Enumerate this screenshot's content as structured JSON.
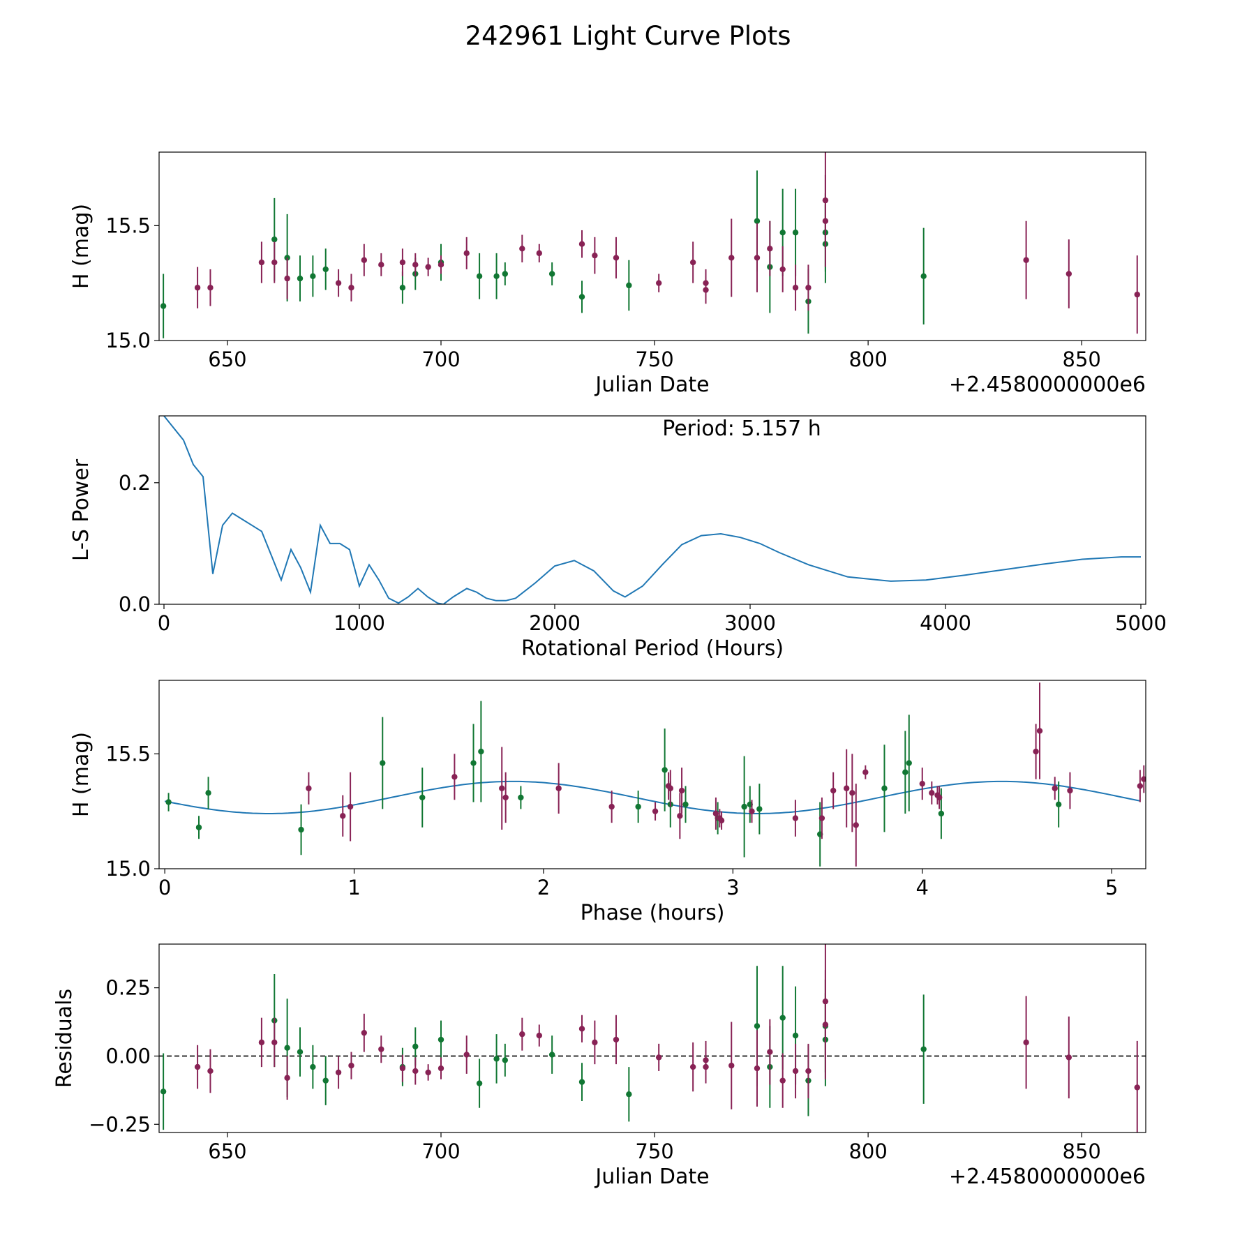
{
  "title": "242961 Light Curve Plots",
  "colors": {
    "green": "#117733",
    "purple": "#882255",
    "curve": "#1f77b4"
  },
  "chart_data": [
    {
      "id": "lightcurve",
      "type": "scatter",
      "xlabel": "Julian Date",
      "ylabel": "H (mag)",
      "x_offset_label": "+2.4580000000e6",
      "xlim": [
        634,
        865
      ],
      "ylim": [
        15.0,
        15.82
      ],
      "xticks": [
        650,
        700,
        750,
        800,
        850
      ],
      "yticks": [
        15.0,
        15.5
      ],
      "ytick_labels": [
        "15.0",
        "15.5"
      ],
      "series": [
        {
          "name": "green",
          "color": "#117733",
          "x": [
            635,
            661,
            664,
            667,
            670,
            673,
            691,
            694,
            700,
            709,
            713,
            715,
            726,
            733,
            744,
            774,
            777,
            780,
            783,
            786,
            790,
            790,
            813
          ],
          "y": [
            15.15,
            15.44,
            15.36,
            15.27,
            15.28,
            15.31,
            15.23,
            15.29,
            15.34,
            15.28,
            15.28,
            15.29,
            15.29,
            15.19,
            15.24,
            15.52,
            15.32,
            15.47,
            15.47,
            15.17,
            15.42,
            15.47,
            15.28
          ],
          "err": [
            0.14,
            0.18,
            0.19,
            0.1,
            0.09,
            0.09,
            0.07,
            0.07,
            0.08,
            0.1,
            0.1,
            0.05,
            0.05,
            0.07,
            0.11,
            0.22,
            0.2,
            0.19,
            0.19,
            0.14,
            0.17,
            0.17,
            0.21
          ]
        },
        {
          "name": "purple",
          "color": "#882255",
          "x": [
            643,
            646,
            658,
            661,
            664,
            676,
            679,
            682,
            686,
            691,
            694,
            697,
            700,
            706,
            719,
            723,
            733,
            736,
            741,
            751,
            759,
            762,
            762,
            768,
            774,
            777,
            780,
            783,
            786,
            790,
            790,
            837,
            847,
            863
          ],
          "y": [
            15.23,
            15.23,
            15.34,
            15.34,
            15.27,
            15.25,
            15.23,
            15.35,
            15.33,
            15.34,
            15.33,
            15.32,
            15.33,
            15.38,
            15.4,
            15.38,
            15.42,
            15.37,
            15.36,
            15.25,
            15.34,
            15.22,
            15.25,
            15.36,
            15.36,
            15.4,
            15.31,
            15.23,
            15.23,
            15.52,
            15.61,
            15.35,
            15.29,
            15.2
          ],
          "err": [
            0.09,
            0.08,
            0.09,
            0.09,
            0.09,
            0.06,
            0.06,
            0.07,
            0.05,
            0.06,
            0.05,
            0.04,
            0.04,
            0.07,
            0.06,
            0.04,
            0.06,
            0.08,
            0.09,
            0.04,
            0.09,
            0.06,
            0.06,
            0.17,
            0.15,
            0.12,
            0.1,
            0.1,
            0.1,
            0.2,
            0.21,
            0.17,
            0.15,
            0.17
          ]
        }
      ]
    },
    {
      "id": "periodogram",
      "type": "line",
      "xlabel": "Rotational Period (Hours)",
      "ylabel": "L-S Power",
      "annotation": "Period: 5.157 h",
      "xlim": [
        -25,
        5025
      ],
      "ylim": [
        0.0,
        0.31
      ],
      "xticks": [
        0,
        1000,
        2000,
        3000,
        4000,
        5000
      ],
      "yticks": [
        0.0,
        0.2
      ],
      "ytick_labels": [
        "0.0",
        "0.2"
      ],
      "series": [
        {
          "name": "L-S Power",
          "color": "#1f77b4",
          "x": [
            0,
            100,
            150,
            200,
            250,
            300,
            350,
            400,
            450,
            500,
            550,
            600,
            650,
            700,
            750,
            800,
            850,
            900,
            950,
            1000,
            1050,
            1100,
            1150,
            1200,
            1250,
            1300,
            1350,
            1400,
            1430,
            1480,
            1550,
            1600,
            1650,
            1700,
            1750,
            1800,
            1900,
            2000,
            2100,
            2200,
            2300,
            2360,
            2450,
            2550,
            2650,
            2750,
            2850,
            2950,
            3050,
            3150,
            3300,
            3500,
            3720,
            3900,
            4100,
            4300,
            4500,
            4700,
            4900,
            5000
          ],
          "y": [
            0.31,
            0.27,
            0.23,
            0.21,
            0.05,
            0.13,
            0.15,
            0.14,
            0.13,
            0.12,
            0.08,
            0.04,
            0.09,
            0.06,
            0.02,
            0.13,
            0.1,
            0.1,
            0.09,
            0.03,
            0.065,
            0.04,
            0.01,
            0.002,
            0.012,
            0.026,
            0.012,
            0.002,
            0.0,
            0.012,
            0.026,
            0.02,
            0.01,
            0.006,
            0.006,
            0.01,
            0.035,
            0.063,
            0.072,
            0.055,
            0.022,
            0.012,
            0.03,
            0.065,
            0.098,
            0.113,
            0.116,
            0.11,
            0.1,
            0.085,
            0.065,
            0.045,
            0.038,
            0.04,
            0.048,
            0.057,
            0.066,
            0.074,
            0.078,
            0.078
          ]
        }
      ]
    },
    {
      "id": "phased",
      "type": "scatter",
      "xlabel": "Phase (hours)",
      "ylabel": "H (mag)",
      "xlim": [
        -0.03,
        5.18
      ],
      "ylim": [
        15.0,
        15.82
      ],
      "xticks": [
        0,
        1,
        2,
        3,
        4,
        5
      ],
      "yticks": [
        15.0,
        15.5
      ],
      "ytick_labels": [
        "15.0",
        "15.5"
      ],
      "model": {
        "mean": 15.31,
        "amplitude": 0.07,
        "phase_of_min_hours": 0.55,
        "period_hours": 5.157
      },
      "series": [
        {
          "name": "green",
          "color": "#117733",
          "x": [
            0.02,
            0.18,
            0.23,
            0.72,
            1.15,
            1.36,
            1.63,
            1.67,
            1.88,
            2.5,
            2.64,
            2.67,
            2.75,
            2.92,
            3.06,
            3.09,
            3.14,
            3.46,
            3.8,
            3.91,
            3.93,
            4.1,
            4.72
          ],
          "y": [
            15.29,
            15.18,
            15.33,
            15.17,
            15.46,
            15.31,
            15.46,
            15.51,
            15.31,
            15.27,
            15.43,
            15.28,
            15.28,
            15.22,
            15.27,
            15.28,
            15.26,
            15.15,
            15.35,
            15.42,
            15.46,
            15.24,
            15.28
          ],
          "err": [
            0.04,
            0.05,
            0.07,
            0.11,
            0.2,
            0.13,
            0.17,
            0.22,
            0.05,
            0.07,
            0.18,
            0.1,
            0.08,
            0.07,
            0.22,
            0.08,
            0.11,
            0.14,
            0.19,
            0.18,
            0.21,
            0.11,
            0.1
          ]
        },
        {
          "name": "purple",
          "color": "#882255",
          "x": [
            0.94,
            0.98,
            0.76,
            1.53,
            1.78,
            1.8,
            2.08,
            2.36,
            2.59,
            2.66,
            2.67,
            2.72,
            2.73,
            2.91,
            2.93,
            2.94,
            3.1,
            3.33,
            3.47,
            3.53,
            3.6,
            3.63,
            3.65,
            3.7,
            4.0,
            4.05,
            4.08,
            4.09,
            4.6,
            4.62,
            4.7,
            4.78,
            5.15,
            5.17
          ],
          "y": [
            15.23,
            15.27,
            15.35,
            15.4,
            15.35,
            15.31,
            15.35,
            15.27,
            15.25,
            15.36,
            15.35,
            15.23,
            15.34,
            15.24,
            15.22,
            15.21,
            15.25,
            15.22,
            15.22,
            15.34,
            15.35,
            15.33,
            15.19,
            15.42,
            15.37,
            15.33,
            15.32,
            15.31,
            15.51,
            15.6,
            15.35,
            15.34,
            15.36,
            15.39
          ],
          "err": [
            0.09,
            0.15,
            0.07,
            0.1,
            0.18,
            0.11,
            0.11,
            0.07,
            0.04,
            0.06,
            0.08,
            0.1,
            0.1,
            0.07,
            0.04,
            0.04,
            0.05,
            0.08,
            0.09,
            0.08,
            0.17,
            0.17,
            0.18,
            0.03,
            0.07,
            0.05,
            0.04,
            0.05,
            0.12,
            0.21,
            0.05,
            0.08,
            0.07,
            0.06
          ]
        }
      ]
    },
    {
      "id": "residuals",
      "type": "scatter",
      "xlabel": "Julian Date",
      "ylabel": "Residuals",
      "x_offset_label": "+2.4580000000e6",
      "xlim": [
        634,
        865
      ],
      "ylim": [
        -0.28,
        0.41
      ],
      "xticks": [
        650,
        700,
        750,
        800,
        850
      ],
      "yticks": [
        -0.25,
        0.0,
        0.25
      ],
      "ytick_labels": [
        "−0.25",
        "0.00",
        "0.25"
      ],
      "reference_line": 0.0,
      "series": [
        {
          "name": "green",
          "color": "#117733",
          "x": [
            635,
            661,
            664,
            667,
            670,
            673,
            691,
            694,
            700,
            709,
            713,
            715,
            726,
            733,
            744,
            774,
            777,
            780,
            783,
            786,
            790,
            790,
            813
          ],
          "y": [
            -0.13,
            0.13,
            0.03,
            0.015,
            -0.04,
            -0.09,
            -0.04,
            0.035,
            0.06,
            -0.1,
            -0.01,
            -0.015,
            0.005,
            -0.095,
            -0.14,
            0.11,
            -0.04,
            0.14,
            0.075,
            -0.09,
            0.06,
            0.11,
            0.025
          ],
          "err": [
            0.14,
            0.17,
            0.18,
            0.09,
            0.08,
            0.09,
            0.07,
            0.07,
            0.07,
            0.09,
            0.09,
            0.06,
            0.07,
            0.07,
            0.1,
            0.22,
            0.15,
            0.19,
            0.18,
            0.13,
            0.17,
            0.17,
            0.2
          ]
        },
        {
          "name": "purple",
          "color": "#882255",
          "x": [
            643,
            646,
            658,
            661,
            664,
            676,
            679,
            682,
            686,
            691,
            694,
            697,
            700,
            706,
            719,
            723,
            733,
            736,
            741,
            751,
            759,
            762,
            762,
            768,
            774,
            777,
            780,
            783,
            786,
            790,
            790,
            837,
            847,
            863
          ],
          "y": [
            -0.04,
            -0.055,
            0.05,
            0.05,
            -0.08,
            -0.06,
            -0.035,
            0.085,
            0.025,
            -0.045,
            -0.055,
            -0.06,
            -0.045,
            0.005,
            0.08,
            0.075,
            0.1,
            0.05,
            0.06,
            -0.005,
            -0.04,
            -0.015,
            -0.04,
            -0.035,
            -0.045,
            0.015,
            -0.09,
            -0.055,
            -0.055,
            0.115,
            0.2,
            0.05,
            -0.005,
            -0.115
          ],
          "err": [
            0.08,
            0.08,
            0.09,
            0.09,
            0.08,
            0.06,
            0.05,
            0.07,
            0.05,
            0.05,
            0.05,
            0.03,
            0.04,
            0.07,
            0.06,
            0.04,
            0.05,
            0.08,
            0.09,
            0.05,
            0.09,
            0.07,
            0.06,
            0.16,
            0.14,
            0.12,
            0.1,
            0.1,
            0.1,
            0.2,
            0.21,
            0.17,
            0.15,
            0.17
          ]
        }
      ]
    }
  ]
}
